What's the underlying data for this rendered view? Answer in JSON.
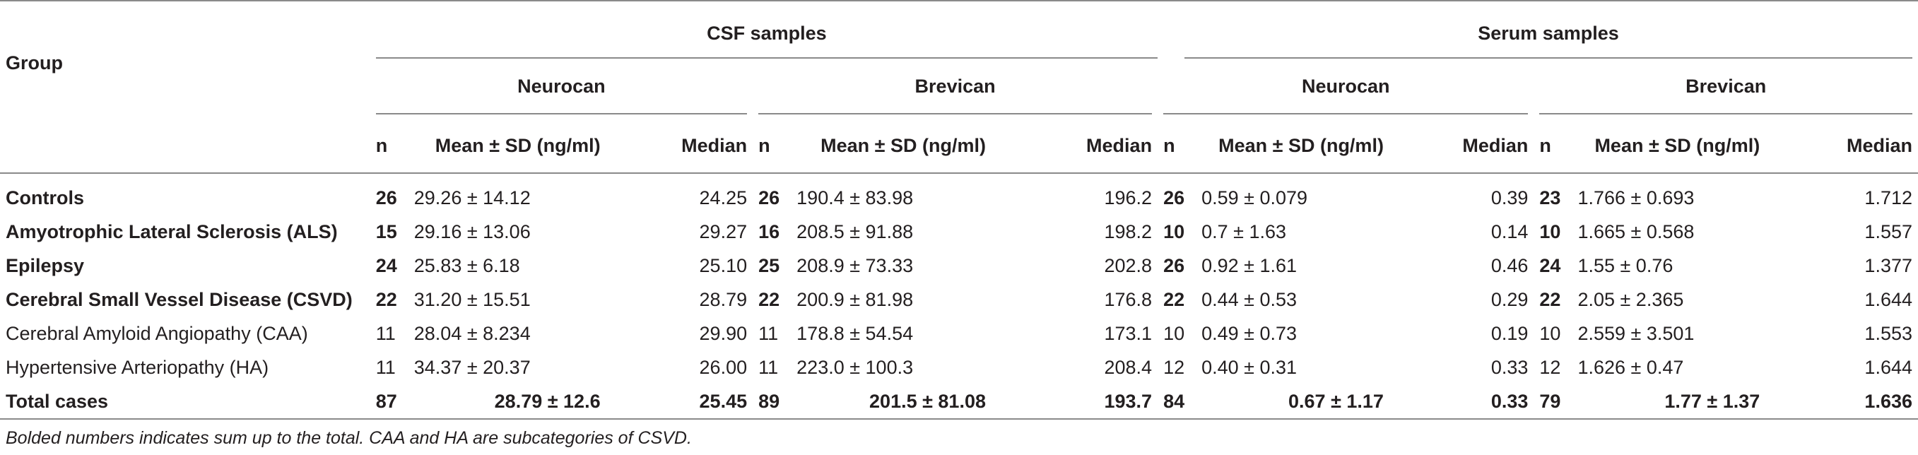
{
  "header": {
    "group_label": "Group",
    "csf_label": "CSF samples",
    "serum_label": "Serum samples",
    "neurocan_label": "Neurocan",
    "brevican_label": "Brevican",
    "n_label": "n",
    "mean_sd_label_csf_neu": "Mean  ± SD (ng/ml)",
    "mean_sd_label_csf_bre": "Mean ± SD (ng/ml)",
    "mean_sd_label_serum_neu": "Mean ± SD (ng/ml)",
    "mean_sd_label_serum_bre": "Mean ± SD (ng/ml)",
    "median_label": "Median"
  },
  "rows": [
    {
      "group": "Controls",
      "bold": true,
      "csf_neu_n": "26",
      "csf_neu_mean": "29.26 ± 14.12",
      "csf_neu_median": "24.25",
      "csf_bre_n": "26",
      "csf_bre_mean": "190.4 ± 83.98",
      "csf_bre_median": "196.2",
      "ser_neu_n": "26",
      "ser_neu_mean": "0.59 ± 0.079",
      "ser_neu_median": "0.39",
      "ser_bre_n": "23",
      "ser_bre_mean": "1.766 ± 0.693",
      "ser_bre_median": "1.712"
    },
    {
      "group": "Amyotrophic Lateral Sclerosis (ALS)",
      "bold": true,
      "csf_neu_n": "15",
      "csf_neu_mean": "29.16 ± 13.06",
      "csf_neu_median": "29.27",
      "csf_bre_n": "16",
      "csf_bre_mean": "208.5 ± 91.88",
      "csf_bre_median": "198.2",
      "ser_neu_n": "10",
      "ser_neu_mean": "0.7 ± 1.63",
      "ser_neu_median": "0.14",
      "ser_bre_n": "10",
      "ser_bre_mean": "1.665 ± 0.568",
      "ser_bre_median": "1.557"
    },
    {
      "group": "Epilepsy",
      "bold": true,
      "csf_neu_n": "24",
      "csf_neu_mean": "25.83 ± 6.18",
      "csf_neu_median": "25.10",
      "csf_bre_n": "25",
      "csf_bre_mean": "208.9 ± 73.33",
      "csf_bre_median": "202.8",
      "ser_neu_n": "26",
      "ser_neu_mean": "0.92 ± 1.61",
      "ser_neu_median": "0.46",
      "ser_bre_n": "24",
      "ser_bre_mean": "1.55 ± 0.76",
      "ser_bre_median": "1.377"
    },
    {
      "group": "Cerebral Small Vessel Disease (CSVD)",
      "bold": true,
      "csf_neu_n": "22",
      "csf_neu_mean": "31.20 ± 15.51",
      "csf_neu_median": "28.79",
      "csf_bre_n": "22",
      "csf_bre_mean": "200.9 ± 81.98",
      "csf_bre_median": "176.8",
      "ser_neu_n": "22",
      "ser_neu_mean": "0.44 ± 0.53",
      "ser_neu_median": "0.29",
      "ser_bre_n": "22",
      "ser_bre_mean": "2.05 ± 2.365",
      "ser_bre_median": "1.644"
    },
    {
      "group": "Cerebral Amyloid Angiopathy (CAA)",
      "bold": false,
      "csf_neu_n": "11",
      "csf_neu_mean": "28.04 ± 8.234",
      "csf_neu_median": "29.90",
      "csf_bre_n": "11",
      "csf_bre_mean": "178.8 ± 54.54",
      "csf_bre_median": "173.1",
      "ser_neu_n": "10",
      "ser_neu_mean": "0.49 ± 0.73",
      "ser_neu_median": "0.19",
      "ser_bre_n": "10",
      "ser_bre_mean": "2.559 ± 3.501",
      "ser_bre_median": "1.553"
    },
    {
      "group": "Hypertensive Arteriopathy (HA)",
      "bold": false,
      "csf_neu_n": "11",
      "csf_neu_mean": "34.37 ± 20.37",
      "csf_neu_median": "26.00",
      "csf_bre_n": "11",
      "csf_bre_mean": "223.0 ± 100.3",
      "csf_bre_median": "208.4",
      "ser_neu_n": "12",
      "ser_neu_mean": "0.40 ± 0.31",
      "ser_neu_median": "0.33",
      "ser_bre_n": "12",
      "ser_bre_mean": "1.626 ± 0.47",
      "ser_bre_median": "1.644"
    }
  ],
  "total": {
    "group": "Total cases",
    "csf_neu_n": "87",
    "csf_neu_mean": "28.79  ± 12.6",
    "csf_neu_median": "25.45",
    "csf_bre_n": "89",
    "csf_bre_mean": "201.5  ± 81.08",
    "csf_bre_median": "193.7",
    "ser_neu_n": "84",
    "ser_neu_mean": "0.67  ± 1.17",
    "ser_neu_median": "0.33",
    "ser_bre_n": "79",
    "ser_bre_mean": "1.77  ± 1.37",
    "ser_bre_median": "1.636"
  },
  "footnote": "Bolded numbers indicates sum up to the total. CAA and HA are subcategories of CSVD."
}
